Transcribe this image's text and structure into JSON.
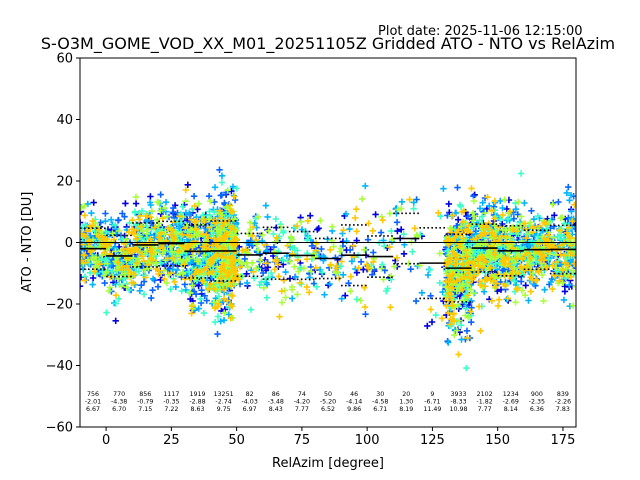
{
  "plot_date": "Plot date: 2025-11-06 12:15:00",
  "chart_data": {
    "type": "scatter",
    "title": "S-O3M_GOME_VOD_XX_M01_20251105Z Gridded ATO - NTO vs RelAzim",
    "xlabel": "RelAzim [degree]",
    "ylabel": "ATO - NTO [DU]",
    "xlim": [
      -10,
      180
    ],
    "ylim": [
      -60,
      60
    ],
    "xticks": [
      0,
      25,
      50,
      75,
      100,
      125,
      150,
      175
    ],
    "yticks": [
      -60,
      -40,
      -20,
      0,
      20,
      40,
      60
    ],
    "zero_line": 0,
    "colors": [
      "#0000dd",
      "#0a64ff",
      "#00b4ff",
      "#3cffc8",
      "#aaff3c",
      "#ffc800"
    ],
    "bins": [
      {
        "x0": -10,
        "x1": 0,
        "count": "756",
        "mean": "-2.01",
        "std": "6.67"
      },
      {
        "x0": 0,
        "x1": 10,
        "count": "770",
        "mean": "-4.38",
        "std": "6.70"
      },
      {
        "x0": 10,
        "x1": 20,
        "count": "856",
        "mean": "-0.79",
        "std": "7.15"
      },
      {
        "x0": 20,
        "x1": 30,
        "count": "1117",
        "mean": "-0.35",
        "std": "7.22"
      },
      {
        "x0": 30,
        "x1": 40,
        "count": "1919",
        "mean": "-2.88",
        "std": "8.63"
      },
      {
        "x0": 40,
        "x1": 50,
        "count": "13251",
        "mean": "-2.74",
        "std": "9.75"
      },
      {
        "x0": 50,
        "x1": 60,
        "count": "82",
        "mean": "-4.03",
        "std": "6.97"
      },
      {
        "x0": 60,
        "x1": 70,
        "count": "86",
        "mean": "-3.48",
        "std": "8.43"
      },
      {
        "x0": 70,
        "x1": 80,
        "count": "74",
        "mean": "-4.20",
        "std": "7.77"
      },
      {
        "x0": 80,
        "x1": 90,
        "count": "50",
        "mean": "-5.20",
        "std": "6.52"
      },
      {
        "x0": 90,
        "x1": 100,
        "count": "46",
        "mean": "-4.14",
        "std": "9.86"
      },
      {
        "x0": 100,
        "x1": 110,
        "count": "30",
        "mean": "-4.58",
        "std": "6.71"
      },
      {
        "x0": 110,
        "x1": 120,
        "count": "20",
        "mean": "1.30",
        "std": "8.19"
      },
      {
        "x0": 120,
        "x1": 130,
        "count": "9",
        "mean": "-6.71",
        "std": "11.49"
      },
      {
        "x0": 130,
        "x1": 140,
        "count": "3933",
        "mean": "-8.33",
        "std": "10.98"
      },
      {
        "x0": 140,
        "x1": 150,
        "count": "2102",
        "mean": "-1.82",
        "std": "7.77"
      },
      {
        "x0": 150,
        "x1": 160,
        "count": "1234",
        "mean": "-2.69",
        "std": "8.14"
      },
      {
        "x0": 160,
        "x1": 170,
        "count": "900",
        "mean": "-2.35",
        "std": "6.36"
      },
      {
        "x0": 170,
        "x1": 180,
        "count": "839",
        "mean": "-2.26",
        "std": "7.83"
      }
    ]
  }
}
